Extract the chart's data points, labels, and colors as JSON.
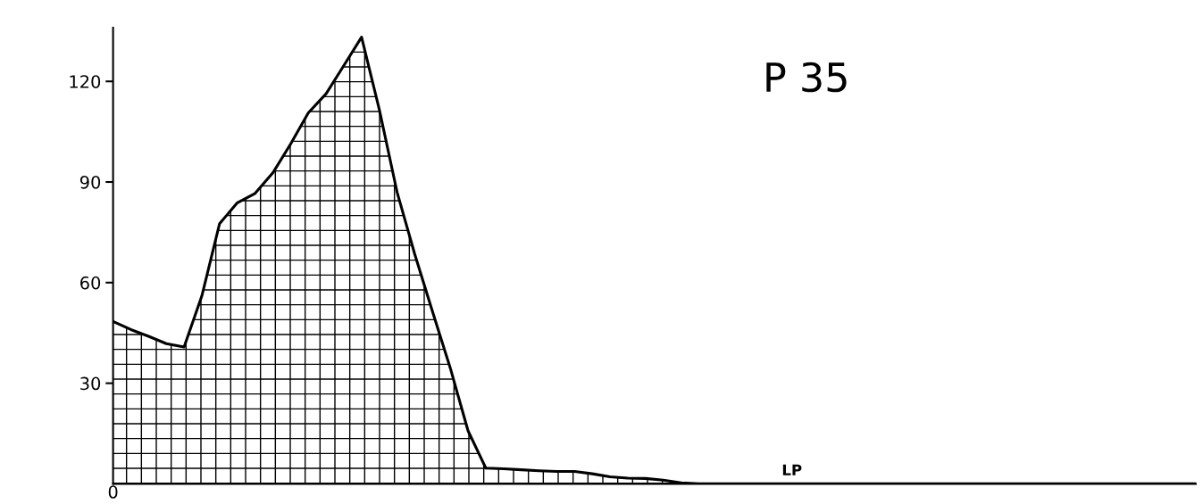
{
  "chart_data": {
    "type": "area",
    "title": "P 35",
    "categories": [
      "0",
      null,
      null,
      null,
      null,
      null,
      null,
      null,
      null,
      null,
      null,
      null,
      null,
      null,
      null,
      null,
      null,
      null,
      null,
      null,
      null,
      null,
      null,
      null,
      null,
      null,
      null,
      null,
      null,
      null,
      null,
      null,
      null,
      null,
      null,
      null,
      null,
      null,
      null,
      null,
      null,
      null,
      null,
      null,
      null,
      null,
      null,
      null,
      null,
      null,
      null,
      null,
      null,
      null,
      null,
      null,
      null,
      null,
      null,
      null,
      null,
      null
    ],
    "series": [
      {
        "color": "#000000",
        "values": [
          48.4,
          46,
          44,
          41.8,
          40.8,
          56,
          77.6,
          83.8,
          86.6,
          92.7,
          101.3,
          110.6,
          116.3,
          124.7,
          133.2,
          111.6,
          87,
          68.4,
          51.3,
          34.5,
          15.8,
          4.7,
          4.5,
          4.2,
          3.9,
          3.7,
          3.7,
          3.0,
          2.1,
          1.7,
          1.6,
          1.1,
          0.3,
          0,
          0,
          0,
          0,
          0,
          0,
          0,
          0,
          0,
          0,
          0,
          0,
          0,
          0,
          0,
          0,
          0,
          0,
          0,
          0,
          0,
          0,
          0,
          0,
          0,
          0,
          0,
          0,
          0
        ]
      }
    ],
    "ylim": [
      0,
      136
    ],
    "yticks": [
      30,
      60,
      90,
      120
    ],
    "annotations": [
      "LP"
    ],
    "grid": false,
    "legend": false
  }
}
